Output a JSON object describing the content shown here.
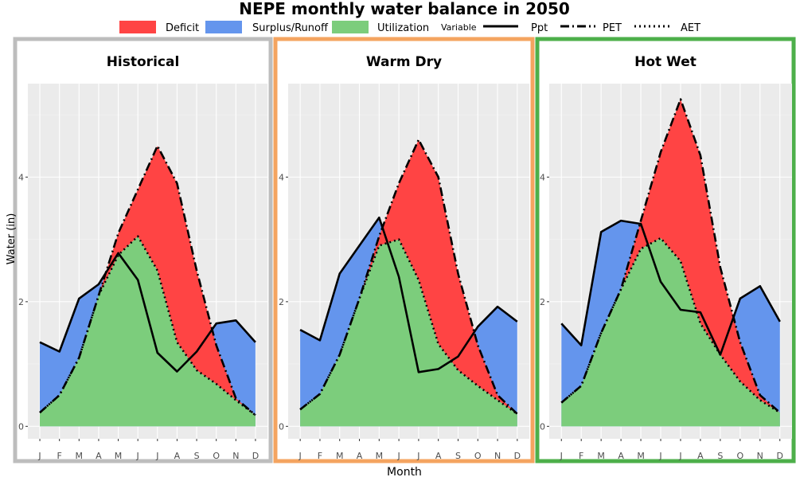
{
  "title": "NEPE monthly water balance in 2050",
  "xlabel": "Month",
  "ylabel": "Water (in)",
  "legend": {
    "fill_items": [
      {
        "label": "Deficit",
        "color": "#ff4444"
      },
      {
        "label": "Surplus/Runoff",
        "color": "#6495ed"
      },
      {
        "label": "Utilization",
        "color": "#7ccd7c"
      }
    ],
    "variable_title": "Variable",
    "line_items": [
      {
        "label": "Ppt",
        "style": "solid"
      },
      {
        "label": "PET",
        "style": "dashdot"
      },
      {
        "label": "AET",
        "style": "dotted"
      }
    ]
  },
  "chart_data": {
    "type": "area",
    "months": [
      "J",
      "F",
      "M",
      "A",
      "M",
      "J",
      "J",
      "A",
      "S",
      "O",
      "N",
      "D"
    ],
    "ylim": [
      -0.2,
      5.5
    ],
    "yticks": [
      0,
      2,
      4
    ],
    "grid": true,
    "panels": [
      {
        "title": "Historical",
        "border_color": "#bdbdbd",
        "series": [
          {
            "name": "Ppt",
            "values": [
              1.35,
              1.2,
              2.05,
              2.28,
              2.78,
              2.35,
              1.18,
              0.88,
              1.2,
              1.65,
              1.7,
              1.35
            ]
          },
          {
            "name": "PET",
            "values": [
              0.22,
              0.5,
              1.1,
              2.1,
              3.1,
              3.8,
              4.5,
              3.9,
              2.5,
              1.3,
              0.45,
              0.18
            ]
          },
          {
            "name": "AET",
            "values": [
              0.22,
              0.5,
              1.1,
              2.1,
              2.75,
              3.05,
              2.5,
              1.35,
              0.9,
              0.68,
              0.42,
              0.18
            ]
          }
        ]
      },
      {
        "title": "Warm Dry",
        "border_color": "#f4a460",
        "series": [
          {
            "name": "Ppt",
            "values": [
              1.55,
              1.38,
              2.45,
              2.9,
              3.35,
              2.4,
              0.87,
              0.92,
              1.12,
              1.6,
              1.92,
              1.68
            ]
          },
          {
            "name": "PET",
            "values": [
              0.27,
              0.52,
              1.15,
              2.05,
              3.05,
              3.9,
              4.6,
              4.0,
              2.45,
              1.3,
              0.5,
              0.2
            ]
          },
          {
            "name": "AET",
            "values": [
              0.27,
              0.52,
              1.15,
              2.05,
              2.9,
              3.0,
              2.35,
              1.32,
              0.9,
              0.65,
              0.42,
              0.2
            ]
          }
        ]
      },
      {
        "title": "Hot Wet",
        "border_color": "#4daf4a",
        "series": [
          {
            "name": "Ppt",
            "values": [
              1.65,
              1.3,
              3.12,
              3.3,
              3.25,
              2.32,
              1.87,
              1.83,
              1.15,
              2.05,
              2.25,
              1.68
            ]
          },
          {
            "name": "PET",
            "values": [
              0.38,
              0.65,
              1.5,
              2.2,
              3.3,
              4.4,
              5.25,
              4.35,
              2.55,
              1.35,
              0.5,
              0.22
            ]
          },
          {
            "name": "AET",
            "values": [
              0.38,
              0.65,
              1.5,
              2.2,
              2.85,
              3.02,
              2.65,
              1.65,
              1.15,
              0.72,
              0.42,
              0.22
            ]
          }
        ]
      }
    ]
  }
}
